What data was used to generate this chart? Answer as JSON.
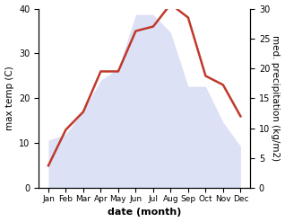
{
  "months": [
    "Jan",
    "Feb",
    "Mar",
    "Apr",
    "May",
    "Jun",
    "Jul",
    "Aug",
    "Sep",
    "Oct",
    "Nov",
    "Dec"
  ],
  "temperature": [
    5,
    13,
    17,
    26,
    26,
    35,
    36,
    41,
    38,
    25,
    23,
    16
  ],
  "precipitation": [
    8,
    9,
    13,
    18,
    20,
    29,
    29,
    26,
    17,
    17,
    11,
    7
  ],
  "temp_color": "#c0392b",
  "precip_fill_color": "#c5cef0",
  "xlabel": "date (month)",
  "ylabel_left": "max temp (C)",
  "ylabel_right": "med. precipitation (kg/m2)",
  "ylim_left": [
    0,
    40
  ],
  "ylim_right": [
    0,
    30
  ],
  "yticks_left": [
    0,
    10,
    20,
    30,
    40
  ],
  "yticks_right": [
    0,
    5,
    10,
    15,
    20,
    25,
    30
  ]
}
